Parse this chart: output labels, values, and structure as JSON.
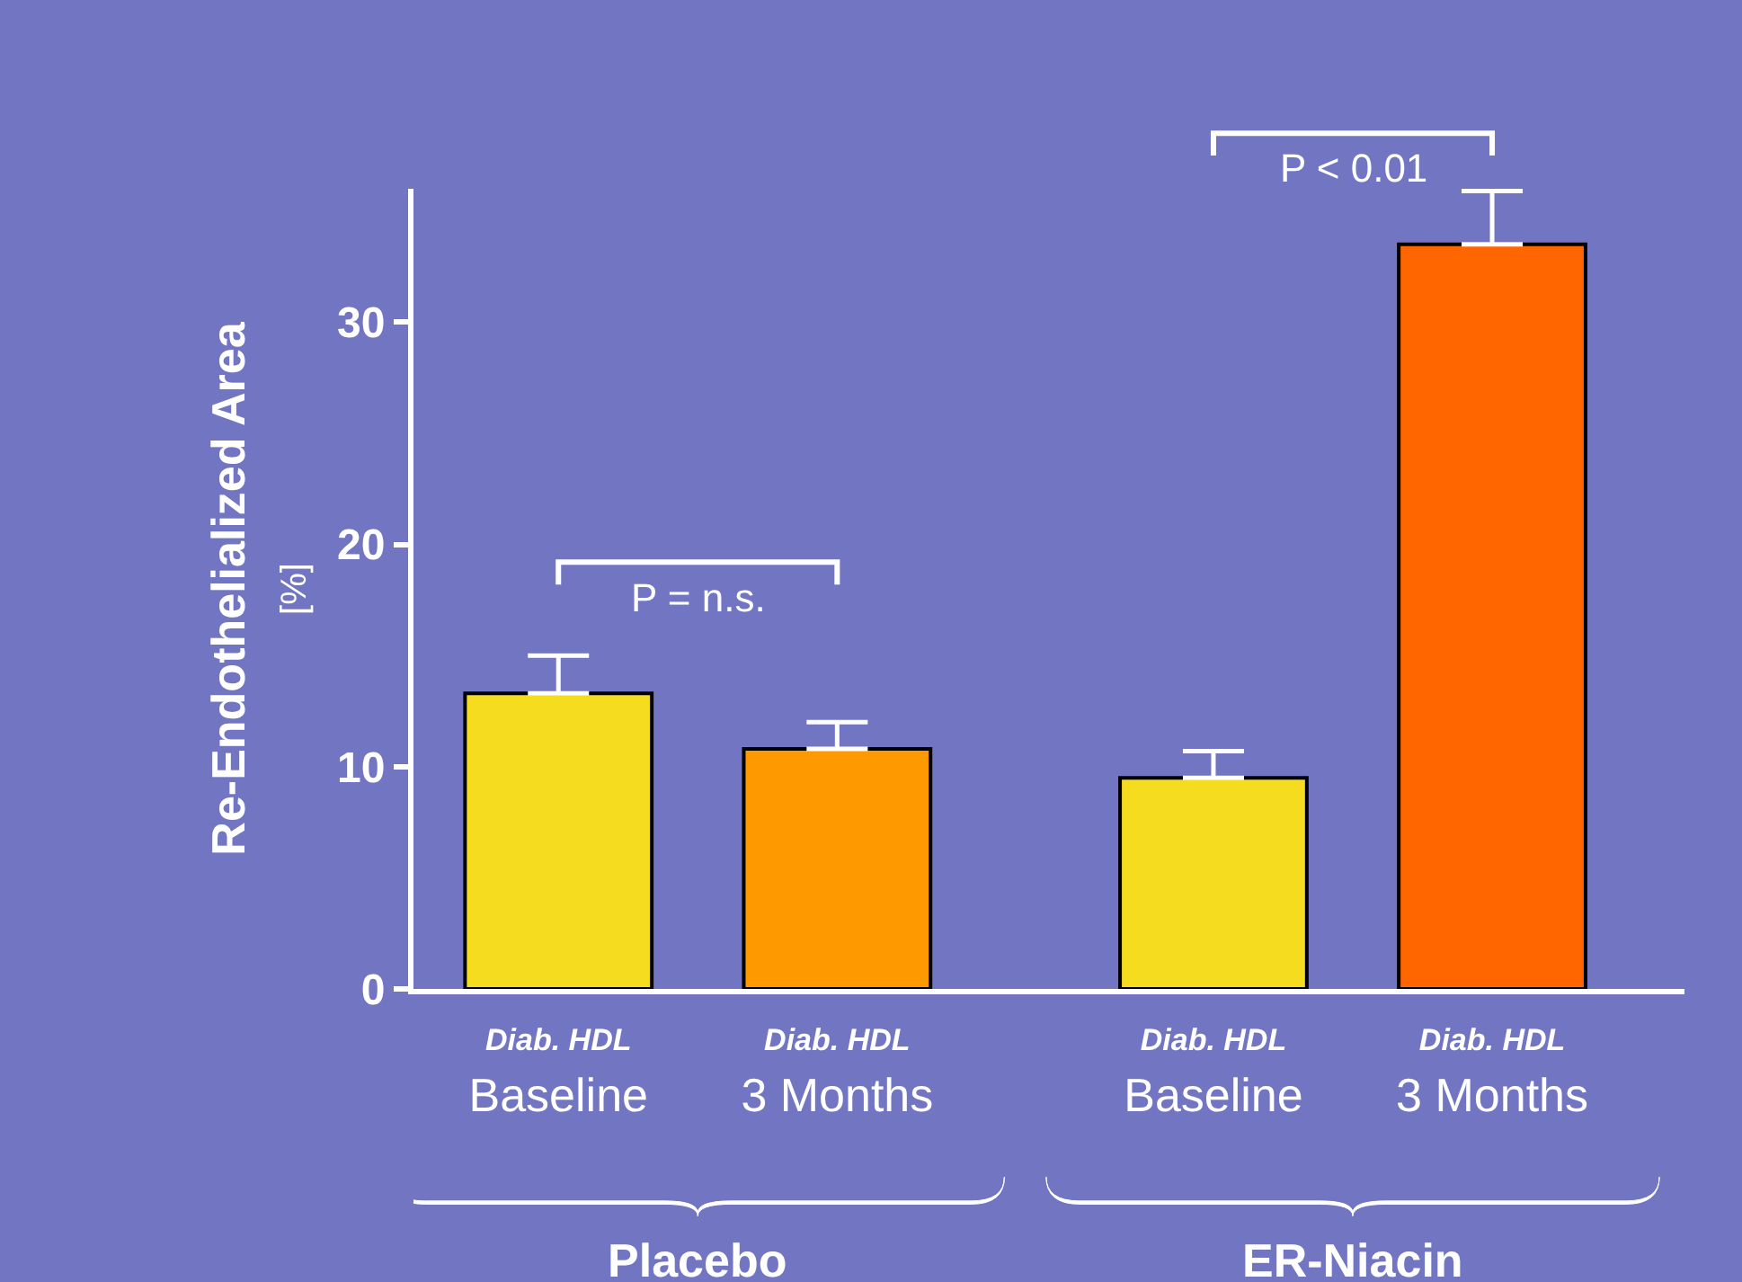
{
  "chart_data": {
    "type": "bar",
    "ylabel": "Re-Endothelialized Area\n[%]",
    "categories": [
      "Diab. HDL\nBaseline",
      "Diab. HDL\n3 Months",
      "Diab. HDL\nBaseline",
      "Diab. HDL\n3 Months"
    ],
    "values": [
      13.3,
      10.8,
      9.5,
      33.5
    ],
    "errors": [
      [
        13.3,
        15.0
      ],
      [
        10.8,
        12.0
      ],
      [
        9.5,
        10.7
      ],
      [
        33.5,
        35.9
      ]
    ],
    "colors": [
      "#f5dc1e",
      "#ff9900",
      "#f5dc1e",
      "#ff6600"
    ],
    "ylim": [
      0,
      36
    ],
    "yticks": [
      0,
      10,
      20,
      30
    ],
    "annotations": [
      "P = n.s.",
      "P < 0.01",
      "Placebo",
      "ER-Niacin"
    ],
    "grid": false,
    "legend": false
  }
}
